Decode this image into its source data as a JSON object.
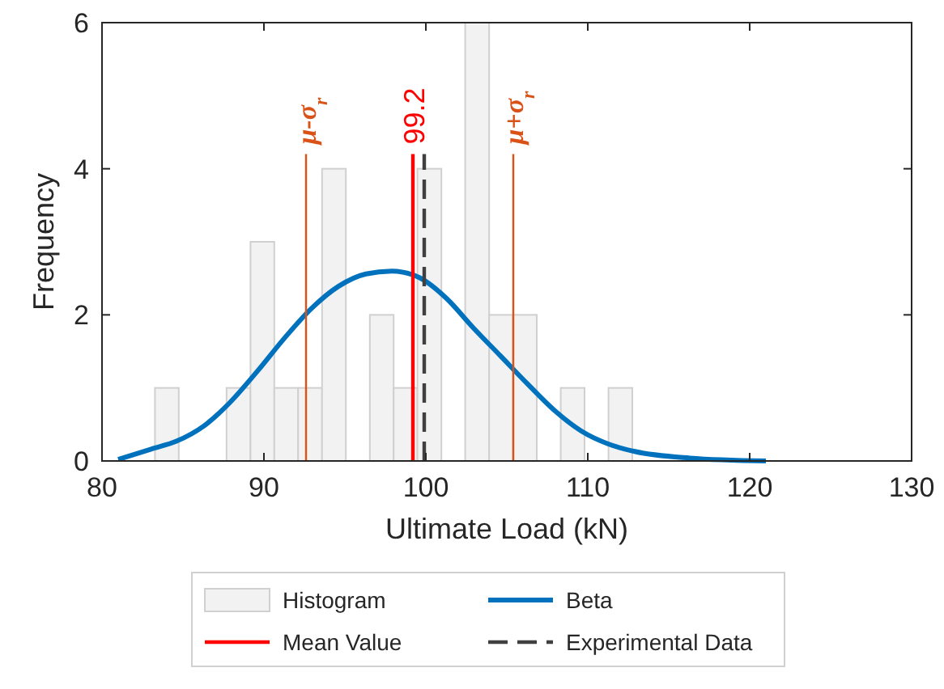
{
  "chart_data": {
    "type": "histogram",
    "xlabel": "Ultimate Load (kN)",
    "ylabel": "Frequency",
    "xlim": [
      80,
      130
    ],
    "xticks": [
      80,
      90,
      100,
      110,
      120,
      130
    ],
    "ylim": [
      0,
      6
    ],
    "yticks": [
      0,
      2,
      4,
      6
    ],
    "legend": "bottom",
    "series": [
      {
        "name": "Histogram",
        "type": "histogram",
        "color": "#f2f2f2",
        "bins": [
          83.27,
          84.74,
          86.22,
          87.69,
          89.17,
          90.64,
          92.11,
          93.59,
          95.06,
          96.54,
          98.01,
          99.48,
          100.96,
          102.43,
          103.91,
          105.38,
          106.85,
          108.33,
          109.8,
          111.28,
          112.75
        ],
        "values": [
          1,
          0,
          0,
          1,
          3,
          1,
          1,
          4,
          0,
          2,
          1,
          4,
          0,
          6,
          2,
          2,
          0,
          1,
          0,
          1
        ]
      },
      {
        "name": "Beta",
        "type": "line",
        "color": "#0072bd",
        "x": [
          81,
          83,
          84.6,
          86.3,
          87.9,
          89.6,
          91.3,
          92.9,
          94.6,
          96.3,
          97.9,
          99.6,
          101.3,
          102.9,
          104.6,
          106.3,
          107.9,
          109.6,
          111.3,
          112.9,
          116.3,
          121
        ],
        "values": [
          0.02,
          0.16,
          0.27,
          0.48,
          0.8,
          1.23,
          1.69,
          2.08,
          2.39,
          2.56,
          2.6,
          2.51,
          2.22,
          1.83,
          1.44,
          1.05,
          0.7,
          0.41,
          0.23,
          0.13,
          0.04,
          0
        ]
      }
    ],
    "ref_lines": [
      {
        "axis": "x",
        "value": 92.6,
        "label": "μ-σ$_{r}$",
        "color": "#d95319"
      },
      {
        "axis": "x",
        "value": 99.2,
        "label": "Mean Value",
        "color": "#ff0000",
        "line_style": "solid"
      },
      {
        "axis": "x",
        "value": 99.9,
        "label": "Experimental Data",
        "color": "#404040",
        "line_style": "dashed"
      },
      {
        "axis": "x",
        "value": 105.4,
        "label": "μ+σ$_{r}$",
        "color": "#d95319"
      }
    ],
    "annotations": [
      {
        "text": "99.2",
        "x": 99.2,
        "y": 4.2
      }
    ]
  }
}
